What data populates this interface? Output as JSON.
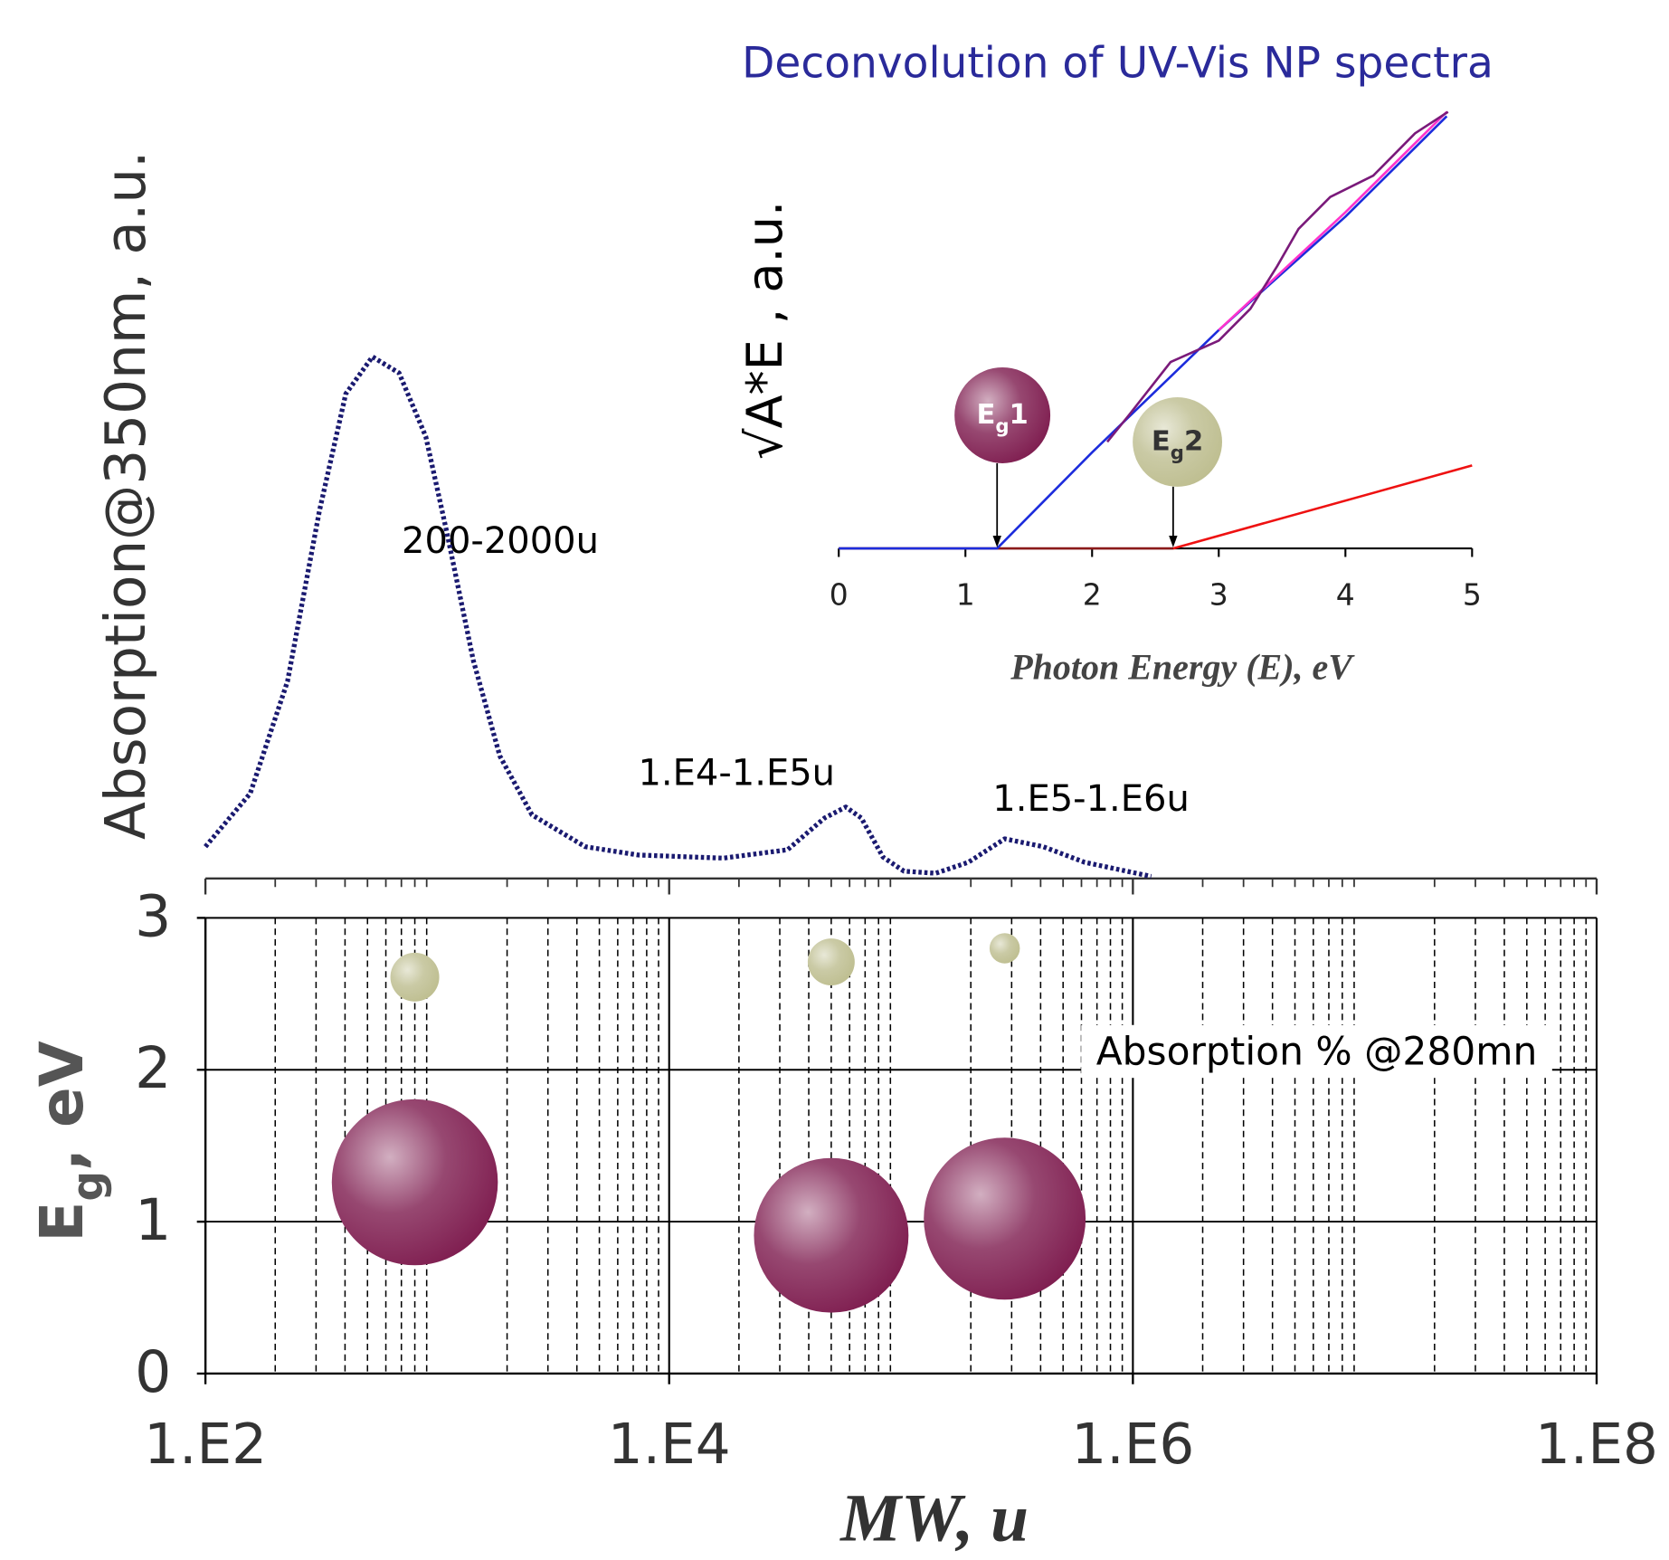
{
  "chart_data": [
    {
      "type": "bubble",
      "xscale": "log",
      "xlim": [
        100,
        100000000
      ],
      "ylim": [
        0,
        3
      ],
      "xticks": [
        {
          "value": 100,
          "label": "1.E2"
        },
        {
          "value": 10000,
          "label": "1.E4"
        },
        {
          "value": 1000000,
          "label": "1.E6"
        },
        {
          "value": 100000000,
          "label": "1.E8"
        }
      ],
      "xminorticks": [
        200,
        300,
        400,
        500,
        600,
        700,
        800,
        900,
        2000,
        3000,
        4000,
        5000,
        6000,
        7000,
        8000,
        9000,
        20000,
        30000,
        40000,
        50000,
        60000,
        70000,
        80000,
        90000,
        200000,
        300000,
        400000,
        500000,
        600000,
        700000,
        800000,
        900000,
        2000000,
        3000000,
        4000000,
        5000000,
        6000000,
        7000000,
        8000000,
        9000000,
        20000000,
        30000000,
        40000000,
        50000000,
        60000000,
        70000000,
        80000000,
        90000000
      ],
      "yticks": [
        0,
        1,
        2,
        3
      ],
      "grid": true,
      "xlabel": "MW, u",
      "ylabel": [
        "E",
        "g",
        ", eV"
      ],
      "annotation": "Absorption % @280mn",
      "series": [
        {
          "color": "#7d1a4d",
          "x": [
            800,
            50000,
            280000
          ],
          "values": [
            1.26,
            0.91,
            1.02
          ],
          "sizes": [
            60,
            52,
            57
          ]
        },
        {
          "color": "#bdbd8e",
          "x": [
            800,
            50000,
            280000
          ],
          "values": [
            2.61,
            2.71,
            2.8
          ],
          "sizes": [
            5.2,
            4.8,
            2
          ]
        }
      ]
    },
    {
      "type": "line",
      "xscale": "log",
      "xlim": [
        100,
        100000000
      ],
      "ylim": [
        0,
        100
      ],
      "line_style": "dotted",
      "ylabel": "Absorption@350nm, a.u.",
      "annotations": [
        "200-2000u",
        "1.E4-1.E5u",
        "1.E5-1.E6u"
      ],
      "series": [
        {
          "color": "#1a1a70",
          "x": [
            100,
            156,
            226,
            310,
            403,
            525,
            684,
            892,
            1100,
            1430,
            1860,
            2560,
            4340,
            7360,
            17100,
            32400,
            46800,
            57800,
            67400,
            83600,
            103000,
            141000,
            195000,
            280000,
            410000,
            620000,
            1200000
          ],
          "values": [
            6.1,
            16.3,
            37.8,
            70.4,
            92.9,
            100,
            96.9,
            84.7,
            66.3,
            41.8,
            23.5,
            12.2,
            6.1,
            4.5,
            3.9,
            5.5,
            11.6,
            13.7,
            11.6,
            4.1,
            1.4,
            1.0,
            3.1,
            7.6,
            6.1,
            3.1,
            0.4
          ]
        }
      ]
    },
    {
      "type": "line",
      "xlim": [
        0,
        5
      ],
      "ylim": [
        0,
        100
      ],
      "xticks": [
        0,
        1,
        2,
        3,
        4,
        5
      ],
      "title": "Deconvolution of UV-Vis NP spectra",
      "xlabel": "Photon Energy (E), eV",
      "ylabel": "√A*E , a.u.",
      "markers": [
        {
          "label": [
            "E",
            "g",
            "1"
          ],
          "x": 1.25,
          "color": "#7d1a4d"
        },
        {
          "label": [
            "E",
            "g",
            "2"
          ],
          "x": 2.64,
          "color": "#bdbd8e"
        }
      ],
      "series": [
        {
          "color": "#8b1a1a",
          "x": [
            0,
            2.64
          ],
          "values": [
            0,
            0
          ]
        },
        {
          "color": "#1c2cdc",
          "x": [
            0,
            1.25,
            2,
            3,
            4,
            4.8
          ],
          "values": [
            0,
            0,
            22,
            50,
            76,
            99
          ]
        },
        {
          "color": "#ff33cc",
          "x": [
            3,
            4,
            4.8
          ],
          "values": [
            50,
            77,
            100
          ]
        },
        {
          "color": "#7a1a7a",
          "x": [
            2.12,
            2.29,
            2.62,
            3.0,
            3.25,
            3.46,
            3.63,
            3.88,
            4.22,
            4.55,
            4.81
          ],
          "values": [
            24.4,
            30.5,
            42.7,
            47.6,
            54.9,
            64.6,
            73.2,
            80.5,
            85.4,
            95.1,
            100
          ]
        },
        {
          "color": "#ee1111",
          "x": [
            2.64,
            5
          ],
          "values": [
            0,
            19
          ]
        }
      ]
    }
  ]
}
